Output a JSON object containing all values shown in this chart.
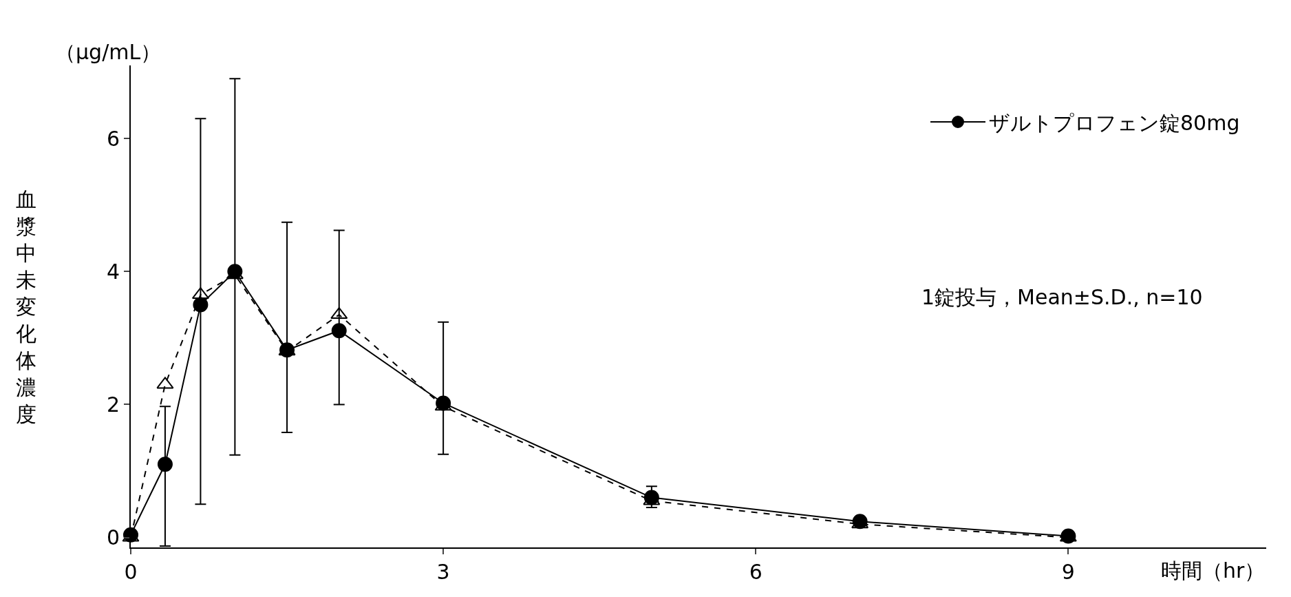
{
  "chart_data": {
    "type": "line",
    "ylabel": "血漿中未変化体濃度",
    "xlabel": "時間（hr）",
    "annotations": [
      "（μg/mL）",
      "1錠投与，Mean±S.D., n=10"
    ],
    "x": [
      0,
      0.33,
      0.67,
      1,
      1.5,
      2,
      3,
      5,
      7,
      9
    ],
    "series": [
      {
        "name": "ザルトプロフェン錠80mg",
        "color": "#000000",
        "marker": "circle",
        "line_style": "solid",
        "values": [
          0.04,
          1.1,
          3.5,
          4.0,
          2.82,
          3.11,
          2.02,
          0.6,
          0.24,
          0.02
        ],
        "errors": [
          null,
          [
            -0.13,
            1.97
          ],
          [
            0.5,
            6.3
          ],
          [
            1.24,
            6.9
          ],
          [
            1.58,
            4.74
          ],
          [
            2.0,
            4.62
          ],
          [
            1.25,
            3.24
          ],
          [
            0.45,
            0.77
          ],
          null,
          null
        ]
      },
      {
        "color": "#000000",
        "marker": "triangle",
        "line_style": "dashed",
        "values": [
          0.0,
          2.3,
          3.65,
          3.95,
          2.8,
          3.35,
          1.97,
          0.55,
          0.2,
          0.0
        ]
      }
    ],
    "xlim": [
      0,
      10.9
    ],
    "xticks": [
      0,
      3,
      6,
      9
    ],
    "ylim": [
      -0.15,
      7.1
    ],
    "yticks": [
      0,
      2,
      4,
      6
    ],
    "legend": "top right"
  }
}
